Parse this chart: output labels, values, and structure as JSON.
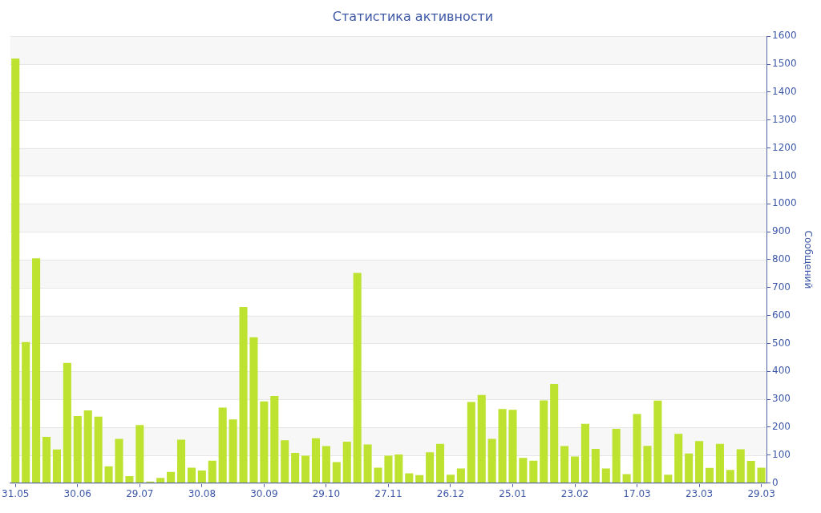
{
  "chart_data": {
    "type": "bar",
    "title": "Статистика активности",
    "ylabel": "Сообщений",
    "categories": [
      "31.05",
      null,
      null,
      null,
      null,
      null,
      "30.06",
      null,
      null,
      null,
      null,
      null,
      "29.07",
      null,
      null,
      null,
      null,
      null,
      "30.08",
      null,
      null,
      null,
      null,
      null,
      "30.09",
      null,
      null,
      null,
      null,
      null,
      "29.10",
      null,
      null,
      null,
      null,
      null,
      "27.11",
      null,
      null,
      null,
      null,
      null,
      "26.12",
      null,
      null,
      null,
      null,
      null,
      "25.01",
      null,
      null,
      null,
      null,
      null,
      "23.02",
      null,
      null,
      null,
      null,
      null,
      "17.03",
      null,
      null,
      null,
      null,
      null,
      "23.03",
      null,
      null,
      null,
      null,
      null,
      "29.03"
    ],
    "values": [
      1520,
      505,
      805,
      165,
      120,
      430,
      240,
      260,
      238,
      60,
      158,
      25,
      208,
      5,
      18,
      40,
      155,
      55,
      45,
      80,
      270,
      228,
      630,
      522,
      292,
      312,
      153,
      108,
      98,
      160,
      132,
      75,
      148,
      752,
      138,
      55,
      98,
      102,
      35,
      28,
      110,
      140,
      30,
      52,
      290,
      315,
      158,
      265,
      262,
      90,
      80,
      296,
      355,
      132,
      95,
      212,
      122,
      52,
      194,
      32,
      247,
      133,
      295,
      30,
      176,
      106,
      150,
      54,
      140,
      47,
      121,
      79,
      55
    ],
    "color": "#bde22f",
    "ylim": [
      0,
      1600
    ],
    "yticks": [
      0,
      100,
      200,
      300,
      400,
      500,
      600,
      700,
      800,
      900,
      1000,
      1100,
      1200,
      1300,
      1400,
      1500,
      1600
    ],
    "grid": true,
    "legend": false
  }
}
